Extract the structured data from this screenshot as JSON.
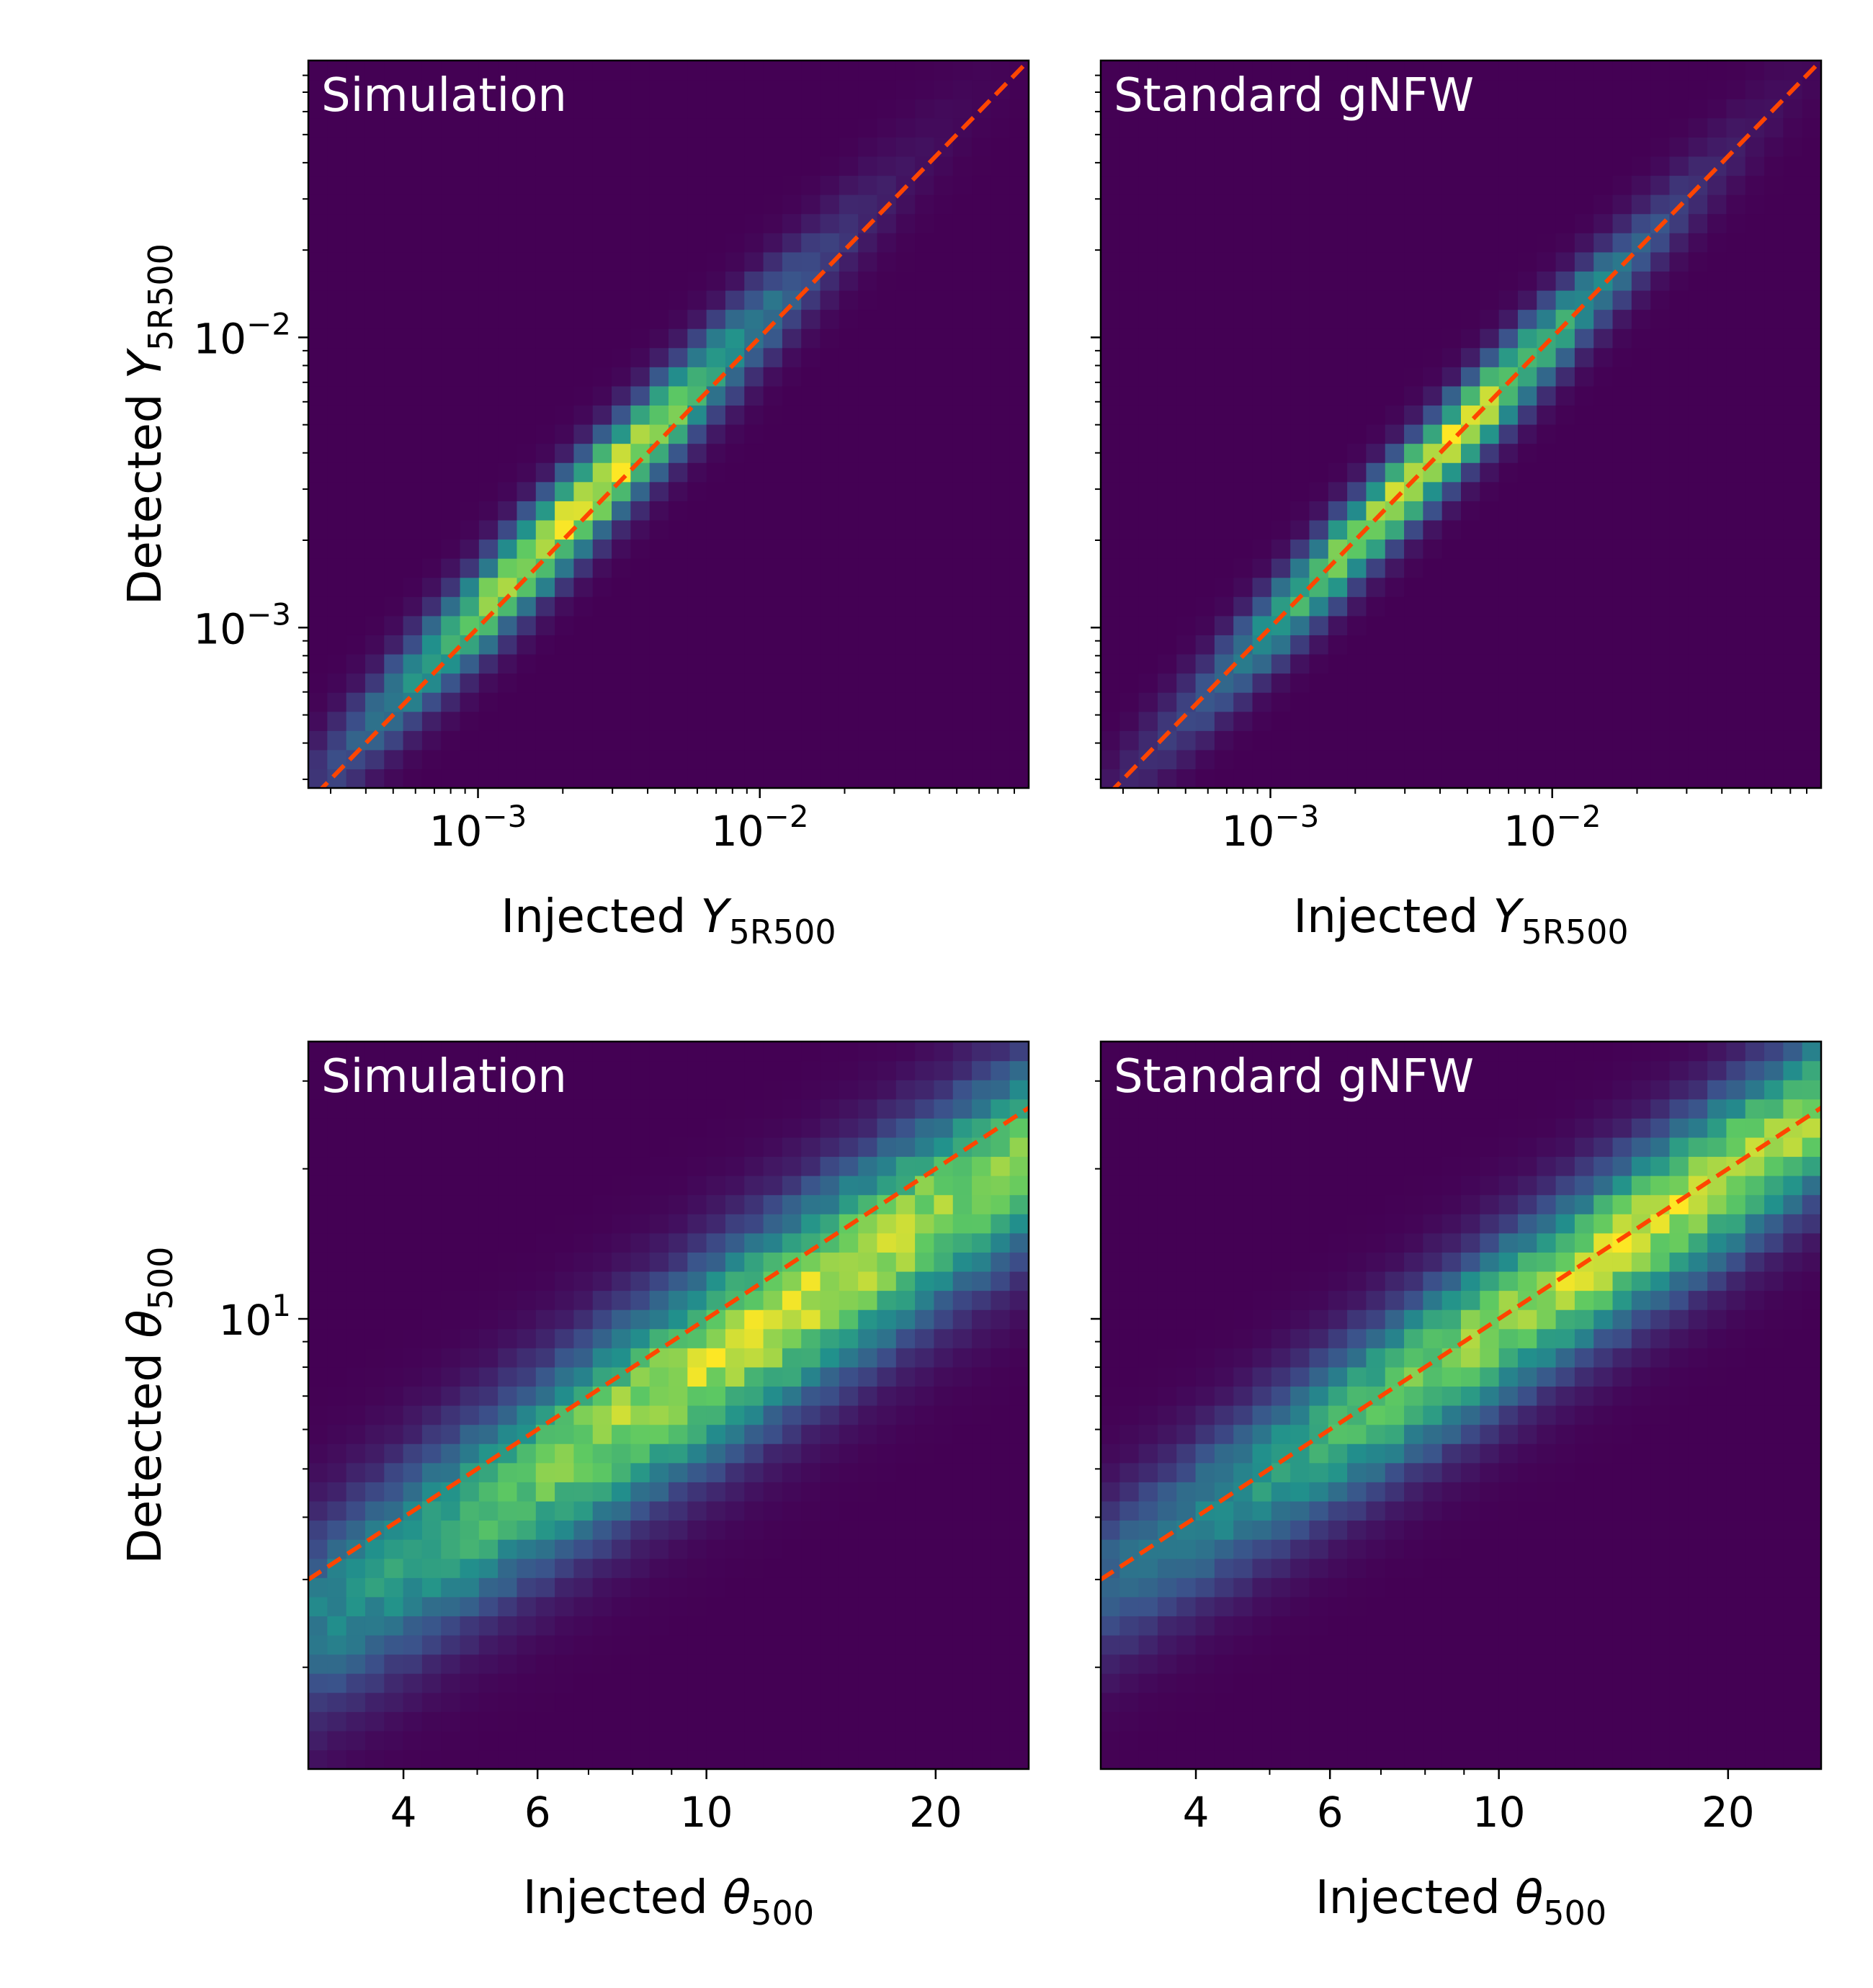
{
  "chart_data": [
    {
      "type": "heatmap",
      "panel_label": "Simulation",
      "xlabel_text": "Injected ",
      "xlabel_symbol": "Y",
      "xlabel_sub": "5R500",
      "ylabel_text": "Detected ",
      "ylabel_symbol": "Y",
      "ylabel_sub": "5R500",
      "xscale": "log",
      "yscale": "log",
      "xlim": [
        0.00025,
        0.09
      ],
      "ylim": [
        0.00028,
        0.09
      ],
      "xticks": [
        {
          "value": 0.001,
          "base": "10",
          "exp": "−3"
        },
        {
          "value": 0.01,
          "base": "10",
          "exp": "−2"
        }
      ],
      "yticks": [
        {
          "value": 0.001,
          "base": "10",
          "exp": "−3"
        },
        {
          "value": 0.01,
          "base": "10",
          "exp": "−2"
        }
      ],
      "show_ytick_labels": true,
      "reference_line": "y = x",
      "ridge": {
        "intercept": 0.05,
        "slope": 1.0,
        "width": 0.1,
        "peak_logx": -2.65
      },
      "colormap": [
        "#440154",
        "#3b528b",
        "#21918c",
        "#5ec962",
        "#fde725"
      ]
    },
    {
      "type": "heatmap",
      "panel_label": "Standard gNFW",
      "xlabel_text": "Injected ",
      "xlabel_symbol": "Y",
      "xlabel_sub": "5R500",
      "ylabel_text": "",
      "ylabel_symbol": "",
      "ylabel_sub": "",
      "xscale": "log",
      "yscale": "log",
      "xlim": [
        0.00025,
        0.09
      ],
      "ylim": [
        0.00028,
        0.09
      ],
      "xticks": [
        {
          "value": 0.001,
          "base": "10",
          "exp": "−3"
        },
        {
          "value": 0.01,
          "base": "10",
          "exp": "−2"
        }
      ],
      "yticks": [
        {
          "value": 0.001,
          "base": "10",
          "exp": "−3"
        },
        {
          "value": 0.01,
          "base": "10",
          "exp": "−2"
        }
      ],
      "show_ytick_labels": false,
      "reference_line": "y = x",
      "ridge": {
        "intercept": 0.0,
        "slope": 1.0,
        "width": 0.09,
        "peak_logx": -2.45
      },
      "colormap": [
        "#440154",
        "#3b528b",
        "#21918c",
        "#5ec962",
        "#fde725"
      ]
    },
    {
      "type": "heatmap",
      "panel_label": "Simulation",
      "xlabel_text": "Injected ",
      "xlabel_symbol": "θ",
      "xlabel_sub": "500",
      "ylabel_text": "Detected ",
      "ylabel_symbol": "θ",
      "ylabel_sub": "500",
      "xscale": "log",
      "yscale": "log",
      "xlim": [
        3.0,
        26.5
      ],
      "ylim": [
        1.25,
        36.0
      ],
      "xticks": [
        {
          "value": 4,
          "label": "4"
        },
        {
          "value": 6,
          "label": "6"
        },
        {
          "value": 10,
          "label": "10"
        },
        {
          "value": 20,
          "label": "20"
        }
      ],
      "yticks": [
        {
          "value": 10,
          "base": "10",
          "exp": "1"
        }
      ],
      "show_ytick_labels": true,
      "reference_line": "y = x",
      "ridge": {
        "intercept": -0.09,
        "slope": 1.0,
        "width": 0.12,
        "peak_logx": 1.1
      },
      "colormap": [
        "#440154",
        "#3b528b",
        "#21918c",
        "#5ec962",
        "#fde725"
      ]
    },
    {
      "type": "heatmap",
      "panel_label": "Standard gNFW",
      "xlabel_text": "Injected ",
      "xlabel_symbol": "θ",
      "xlabel_sub": "500",
      "ylabel_text": "",
      "ylabel_symbol": "",
      "ylabel_sub": "",
      "xscale": "log",
      "yscale": "log",
      "xlim": [
        3.0,
        26.5
      ],
      "ylim": [
        1.25,
        36.0
      ],
      "xticks": [
        {
          "value": 4,
          "label": "4"
        },
        {
          "value": 6,
          "label": "6"
        },
        {
          "value": 10,
          "label": "10"
        },
        {
          "value": 20,
          "label": "20"
        }
      ],
      "yticks": [
        {
          "value": 10,
          "base": "10",
          "exp": "1"
        }
      ],
      "show_ytick_labels": false,
      "reference_line": "y = x",
      "ridge": {
        "intercept": -0.01,
        "slope": 1.0,
        "width": 0.1,
        "peak_logx": 1.2
      },
      "colormap": [
        "#440154",
        "#3b528b",
        "#21918c",
        "#5ec962",
        "#fde725"
      ]
    }
  ],
  "colors": {
    "reference_line": "#ff4500",
    "axes": "#000000",
    "panel_label": "#ffffff"
  }
}
